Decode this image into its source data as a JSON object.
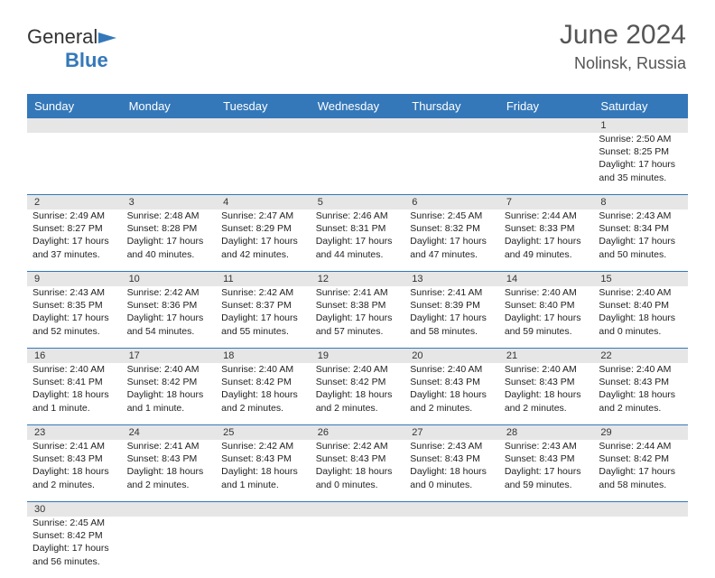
{
  "logo": {
    "general": "General",
    "blue": "Blue"
  },
  "title": {
    "month": "June 2024",
    "location": "Nolinsk, Russia"
  },
  "dayHeaders": [
    "Sunday",
    "Monday",
    "Tuesday",
    "Wednesday",
    "Thursday",
    "Friday",
    "Saturday"
  ],
  "colors": {
    "headerBg": "#3478b9",
    "headerText": "#ffffff",
    "dateRowBg": "#e6e6e6",
    "border": "#3478b9",
    "bodyText": "#222222",
    "titleText": "#555555"
  },
  "weeks": [
    {
      "dates": [
        "",
        "",
        "",
        "",
        "",
        "",
        "1"
      ],
      "cells": [
        null,
        null,
        null,
        null,
        null,
        null,
        {
          "sunrise": "Sunrise: 2:50 AM",
          "sunset": "Sunset: 8:25 PM",
          "day1": "Daylight: 17 hours",
          "day2": "and 35 minutes."
        }
      ]
    },
    {
      "dates": [
        "2",
        "3",
        "4",
        "5",
        "6",
        "7",
        "8"
      ],
      "cells": [
        {
          "sunrise": "Sunrise: 2:49 AM",
          "sunset": "Sunset: 8:27 PM",
          "day1": "Daylight: 17 hours",
          "day2": "and 37 minutes."
        },
        {
          "sunrise": "Sunrise: 2:48 AM",
          "sunset": "Sunset: 8:28 PM",
          "day1": "Daylight: 17 hours",
          "day2": "and 40 minutes."
        },
        {
          "sunrise": "Sunrise: 2:47 AM",
          "sunset": "Sunset: 8:29 PM",
          "day1": "Daylight: 17 hours",
          "day2": "and 42 minutes."
        },
        {
          "sunrise": "Sunrise: 2:46 AM",
          "sunset": "Sunset: 8:31 PM",
          "day1": "Daylight: 17 hours",
          "day2": "and 44 minutes."
        },
        {
          "sunrise": "Sunrise: 2:45 AM",
          "sunset": "Sunset: 8:32 PM",
          "day1": "Daylight: 17 hours",
          "day2": "and 47 minutes."
        },
        {
          "sunrise": "Sunrise: 2:44 AM",
          "sunset": "Sunset: 8:33 PM",
          "day1": "Daylight: 17 hours",
          "day2": "and 49 minutes."
        },
        {
          "sunrise": "Sunrise: 2:43 AM",
          "sunset": "Sunset: 8:34 PM",
          "day1": "Daylight: 17 hours",
          "day2": "and 50 minutes."
        }
      ]
    },
    {
      "dates": [
        "9",
        "10",
        "11",
        "12",
        "13",
        "14",
        "15"
      ],
      "cells": [
        {
          "sunrise": "Sunrise: 2:43 AM",
          "sunset": "Sunset: 8:35 PM",
          "day1": "Daylight: 17 hours",
          "day2": "and 52 minutes."
        },
        {
          "sunrise": "Sunrise: 2:42 AM",
          "sunset": "Sunset: 8:36 PM",
          "day1": "Daylight: 17 hours",
          "day2": "and 54 minutes."
        },
        {
          "sunrise": "Sunrise: 2:42 AM",
          "sunset": "Sunset: 8:37 PM",
          "day1": "Daylight: 17 hours",
          "day2": "and 55 minutes."
        },
        {
          "sunrise": "Sunrise: 2:41 AM",
          "sunset": "Sunset: 8:38 PM",
          "day1": "Daylight: 17 hours",
          "day2": "and 57 minutes."
        },
        {
          "sunrise": "Sunrise: 2:41 AM",
          "sunset": "Sunset: 8:39 PM",
          "day1": "Daylight: 17 hours",
          "day2": "and 58 minutes."
        },
        {
          "sunrise": "Sunrise: 2:40 AM",
          "sunset": "Sunset: 8:40 PM",
          "day1": "Daylight: 17 hours",
          "day2": "and 59 minutes."
        },
        {
          "sunrise": "Sunrise: 2:40 AM",
          "sunset": "Sunset: 8:40 PM",
          "day1": "Daylight: 18 hours",
          "day2": "and 0 minutes."
        }
      ]
    },
    {
      "dates": [
        "16",
        "17",
        "18",
        "19",
        "20",
        "21",
        "22"
      ],
      "cells": [
        {
          "sunrise": "Sunrise: 2:40 AM",
          "sunset": "Sunset: 8:41 PM",
          "day1": "Daylight: 18 hours",
          "day2": "and 1 minute."
        },
        {
          "sunrise": "Sunrise: 2:40 AM",
          "sunset": "Sunset: 8:42 PM",
          "day1": "Daylight: 18 hours",
          "day2": "and 1 minute."
        },
        {
          "sunrise": "Sunrise: 2:40 AM",
          "sunset": "Sunset: 8:42 PM",
          "day1": "Daylight: 18 hours",
          "day2": "and 2 minutes."
        },
        {
          "sunrise": "Sunrise: 2:40 AM",
          "sunset": "Sunset: 8:42 PM",
          "day1": "Daylight: 18 hours",
          "day2": "and 2 minutes."
        },
        {
          "sunrise": "Sunrise: 2:40 AM",
          "sunset": "Sunset: 8:43 PM",
          "day1": "Daylight: 18 hours",
          "day2": "and 2 minutes."
        },
        {
          "sunrise": "Sunrise: 2:40 AM",
          "sunset": "Sunset: 8:43 PM",
          "day1": "Daylight: 18 hours",
          "day2": "and 2 minutes."
        },
        {
          "sunrise": "Sunrise: 2:40 AM",
          "sunset": "Sunset: 8:43 PM",
          "day1": "Daylight: 18 hours",
          "day2": "and 2 minutes."
        }
      ]
    },
    {
      "dates": [
        "23",
        "24",
        "25",
        "26",
        "27",
        "28",
        "29"
      ],
      "cells": [
        {
          "sunrise": "Sunrise: 2:41 AM",
          "sunset": "Sunset: 8:43 PM",
          "day1": "Daylight: 18 hours",
          "day2": "and 2 minutes."
        },
        {
          "sunrise": "Sunrise: 2:41 AM",
          "sunset": "Sunset: 8:43 PM",
          "day1": "Daylight: 18 hours",
          "day2": "and 2 minutes."
        },
        {
          "sunrise": "Sunrise: 2:42 AM",
          "sunset": "Sunset: 8:43 PM",
          "day1": "Daylight: 18 hours",
          "day2": "and 1 minute."
        },
        {
          "sunrise": "Sunrise: 2:42 AM",
          "sunset": "Sunset: 8:43 PM",
          "day1": "Daylight: 18 hours",
          "day2": "and 0 minutes."
        },
        {
          "sunrise": "Sunrise: 2:43 AM",
          "sunset": "Sunset: 8:43 PM",
          "day1": "Daylight: 18 hours",
          "day2": "and 0 minutes."
        },
        {
          "sunrise": "Sunrise: 2:43 AM",
          "sunset": "Sunset: 8:43 PM",
          "day1": "Daylight: 17 hours",
          "day2": "and 59 minutes."
        },
        {
          "sunrise": "Sunrise: 2:44 AM",
          "sunset": "Sunset: 8:42 PM",
          "day1": "Daylight: 17 hours",
          "day2": "and 58 minutes."
        }
      ]
    },
    {
      "dates": [
        "30",
        "",
        "",
        "",
        "",
        "",
        ""
      ],
      "cells": [
        {
          "sunrise": "Sunrise: 2:45 AM",
          "sunset": "Sunset: 8:42 PM",
          "day1": "Daylight: 17 hours",
          "day2": "and 56 minutes."
        },
        null,
        null,
        null,
        null,
        null,
        null
      ]
    }
  ]
}
